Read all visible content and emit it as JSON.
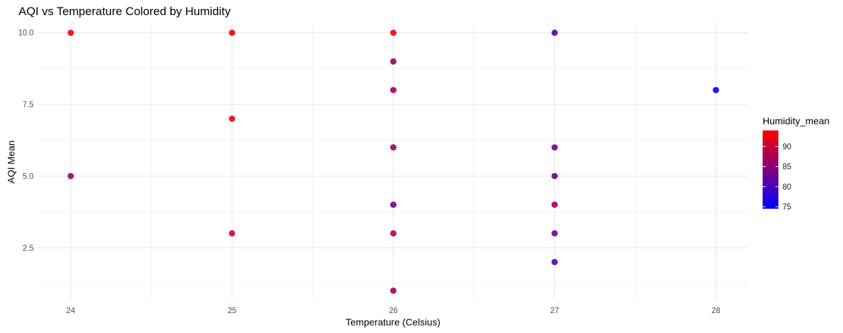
{
  "chart_data": {
    "type": "scatter",
    "title": "AQI vs Temperature Colored by Humidity",
    "xlabel": "Temperature (Celsius)",
    "ylabel": "AQI Mean",
    "xlim": [
      23.8,
      28.2
    ],
    "ylim": [
      0.65,
      10.4
    ],
    "x_ticks": [
      24,
      25,
      26,
      27,
      28
    ],
    "x_tick_labels": [
      "24",
      "25",
      "26",
      "27",
      "28"
    ],
    "y_ticks": [
      2.5,
      5.0,
      7.5,
      10.0
    ],
    "y_tick_labels": [
      "2.5",
      "5.0",
      "7.5",
      "10.0"
    ],
    "grid": true,
    "color_scale": {
      "name": "Humidity_mean",
      "low_color": "#0000FF",
      "high_color": "#FF0000",
      "min": 74.5,
      "max": 94,
      "breaks": [
        75,
        80,
        85,
        90
      ],
      "break_labels": [
        "75",
        "80",
        "85",
        "90"
      ]
    },
    "legend_position": "right",
    "points": [
      {
        "x": 24,
        "y": 10,
        "humidity": 93
      },
      {
        "x": 24,
        "y": 5,
        "humidity": 87
      },
      {
        "x": 25,
        "y": 10,
        "humidity": 93
      },
      {
        "x": 25,
        "y": 7,
        "humidity": 92
      },
      {
        "x": 25,
        "y": 3,
        "humidity": 91
      },
      {
        "x": 26,
        "y": 10,
        "humidity": 93
      },
      {
        "x": 26,
        "y": 9,
        "humidity": 86
      },
      {
        "x": 26,
        "y": 8,
        "humidity": 86
      },
      {
        "x": 26,
        "y": 6,
        "humidity": 86
      },
      {
        "x": 26,
        "y": 4,
        "humidity": 83
      },
      {
        "x": 26,
        "y": 3,
        "humidity": 88
      },
      {
        "x": 26,
        "y": 1,
        "humidity": 87
      },
      {
        "x": 27,
        "y": 10,
        "humidity": 81
      },
      {
        "x": 27,
        "y": 6,
        "humidity": 83
      },
      {
        "x": 27,
        "y": 5,
        "humidity": 83
      },
      {
        "x": 27,
        "y": 4,
        "humidity": 87
      },
      {
        "x": 27,
        "y": 3,
        "humidity": 83
      },
      {
        "x": 27,
        "y": 2,
        "humidity": 81
      },
      {
        "x": 28,
        "y": 8,
        "humidity": 75
      }
    ]
  }
}
